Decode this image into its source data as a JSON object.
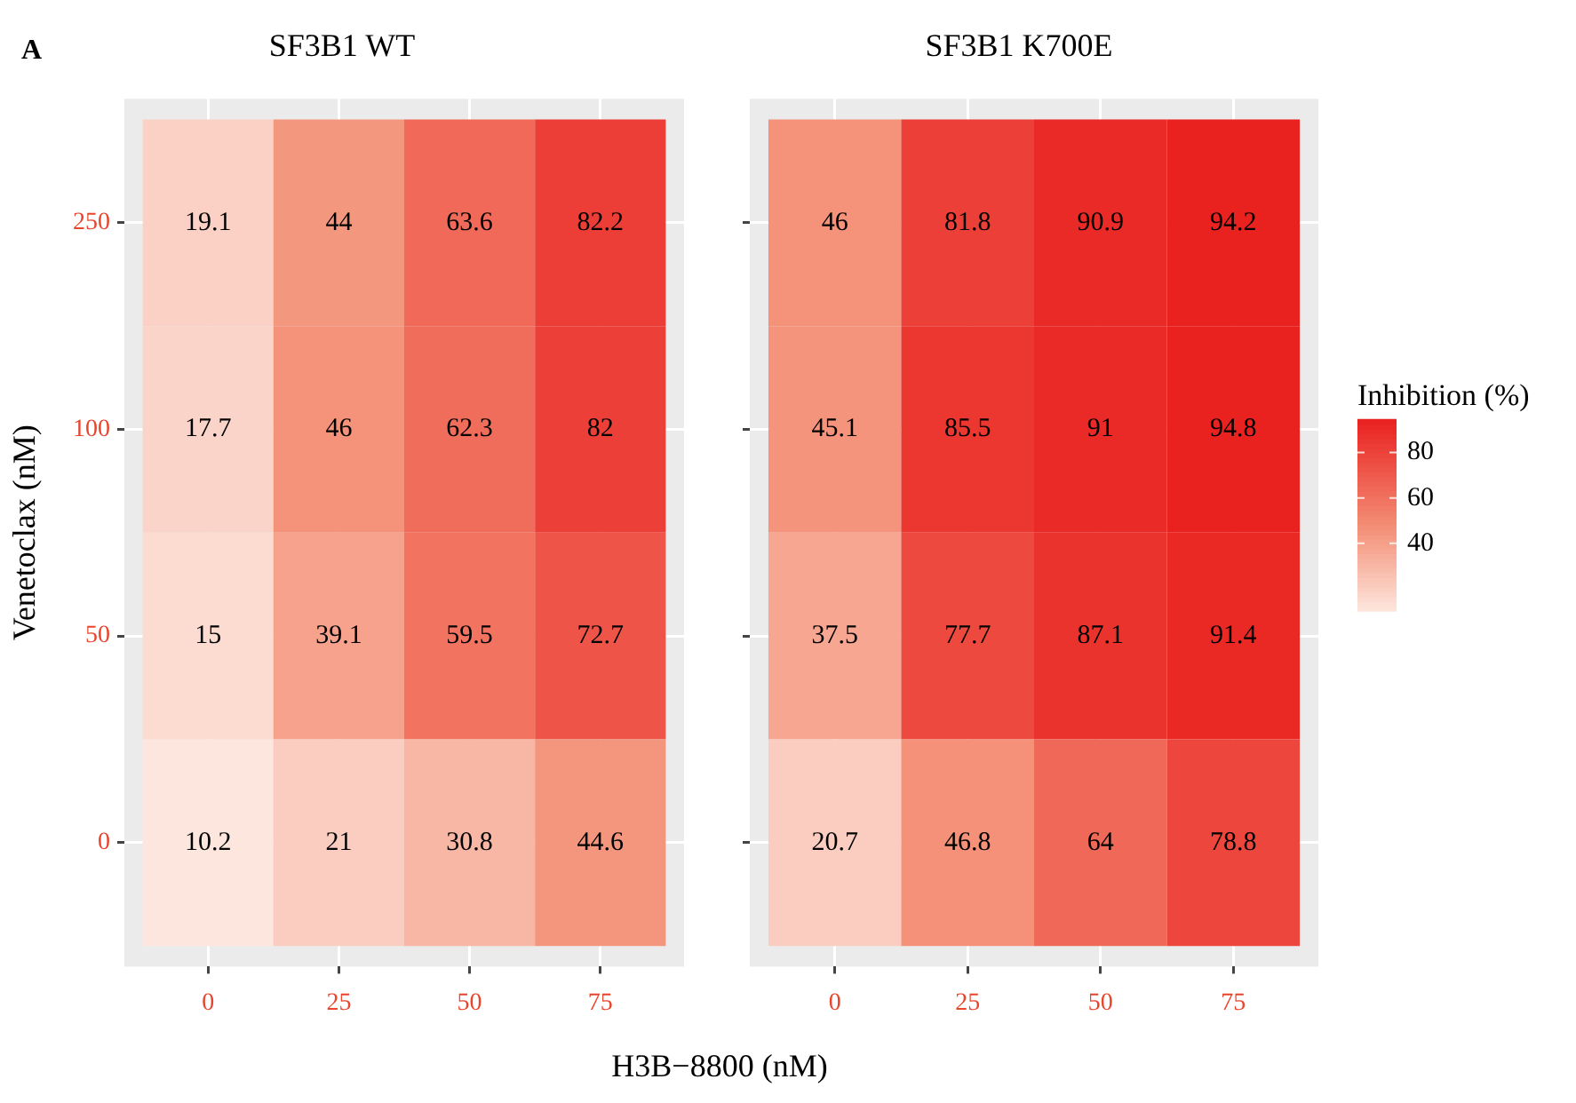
{
  "chart_data": [
    {
      "type": "heatmap",
      "title": "SF3B1 WT",
      "xlabel": "H3B−8800 (nM)",
      "ylabel": "Venetoclax (nM)",
      "annotations": [
        "A"
      ],
      "grid": true,
      "data_labels": true,
      "categories": [
        "0",
        "25",
        "50",
        "75"
      ],
      "y_categories": [
        "250",
        "100",
        "50",
        "0"
      ],
      "cells": [
        [
          19.1,
          44,
          63.6,
          82.2
        ],
        [
          17.7,
          46,
          62.3,
          82
        ],
        [
          15,
          39.1,
          59.5,
          72.7
        ],
        [
          10.2,
          21,
          30.8,
          44.6
        ]
      ]
    },
    {
      "type": "heatmap",
      "title": "SF3B1 K700E",
      "clabel": "Inhibition (%)",
      "grid": true,
      "data_labels": true,
      "tick_labels": "x",
      "categories": [
        "0",
        "25",
        "50",
        "75"
      ],
      "y_categories": [
        "250",
        "100",
        "50",
        "0"
      ],
      "cells": [
        [
          46,
          81.8,
          90.9,
          94.2
        ],
        [
          45.1,
          85.5,
          91,
          94.8
        ],
        [
          37.5,
          77.7,
          87.1,
          91.4
        ],
        [
          20.7,
          46.8,
          64,
          78.8
        ]
      ],
      "clim": [
        10.2,
        94.8
      ],
      "cticks": [
        40,
        60,
        80
      ]
    }
  ]
}
